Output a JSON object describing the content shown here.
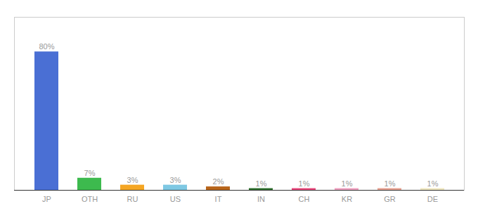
{
  "chart_data": {
    "type": "bar",
    "categories": [
      "JP",
      "OTH",
      "RU",
      "US",
      "IT",
      "IN",
      "CH",
      "KR",
      "GR",
      "DE"
    ],
    "values": [
      80,
      7,
      3,
      3,
      2,
      1,
      1,
      1,
      1,
      1
    ],
    "value_labels": [
      "80%",
      "7%",
      "3%",
      "3%",
      "2%",
      "1%",
      "1%",
      "1%",
      "1%",
      "1%"
    ],
    "colors": [
      "#4a6fd4",
      "#3dba4e",
      "#f5a623",
      "#7ec8e3",
      "#b8651b",
      "#2d6e2d",
      "#e8457a",
      "#f0a0c0",
      "#e8a090",
      "#f0e8c0"
    ],
    "ylim": [
      0,
      100
    ],
    "data_labels": true,
    "tick_labels": "x",
    "grid": false
  }
}
